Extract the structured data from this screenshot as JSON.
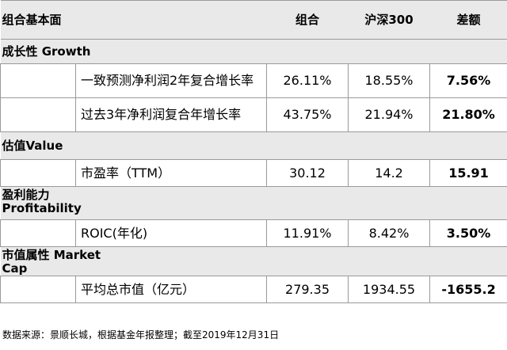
{
  "header": {
    "title": "组合基本面",
    "col_portfolio": "组合",
    "col_index": "沪深300",
    "col_diff": "差额"
  },
  "sections": [
    {
      "title": "成长性 Growth",
      "rows": [
        {
          "metric": "一致预测净利润2年复合增长率",
          "portfolio": "26.11%",
          "index": "18.55%",
          "diff": "7.56%"
        },
        {
          "metric": "过去3年净利润复合年增长率",
          "portfolio": "43.75%",
          "index": "21.94%",
          "diff": "21.80%"
        }
      ]
    },
    {
      "title": "估值Value",
      "rows": [
        {
          "metric": "市盈率（TTM）",
          "portfolio": "30.12",
          "index": "14.2",
          "diff": "15.91"
        }
      ]
    },
    {
      "title_line1": "盈利能力",
      "title_line2": "Profitability",
      "rows": [
        {
          "metric": "ROIC(年化)",
          "portfolio": "11.91%",
          "index": "8.42%",
          "diff": "3.50%"
        }
      ]
    },
    {
      "title_line1": "市值属性 Market",
      "title_line2": "Cap",
      "rows": [
        {
          "metric": "平均总市值（亿元）",
          "portfolio": "279.35",
          "index": "1934.55",
          "diff": "-1655.2"
        }
      ]
    }
  ],
  "footnote": "数据来源：景顺长城，根据基金年报整理；截至2019年12月31日"
}
